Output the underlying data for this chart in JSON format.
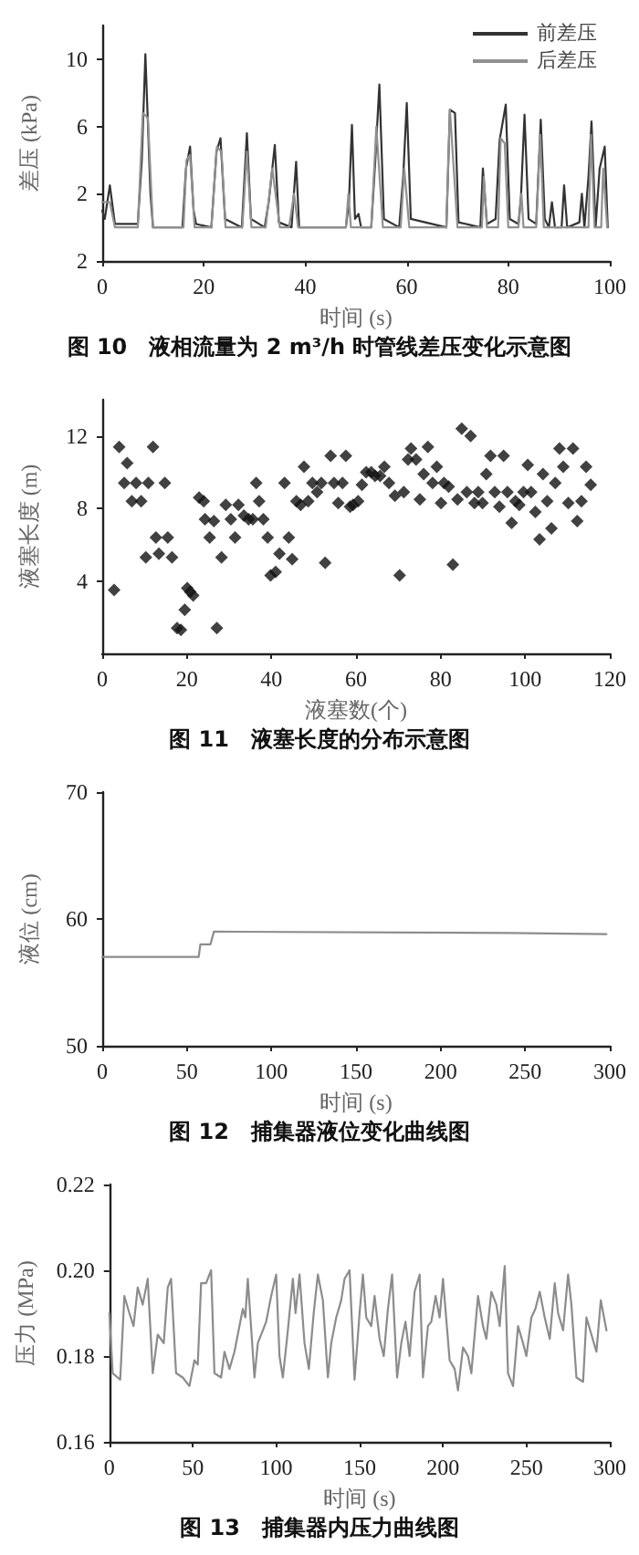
{
  "chart_data": [
    {
      "type": "line",
      "title": "图 10　液相流量为 2 m³/h 时管线差压变化示意图",
      "xlabel": "时间 (s)",
      "ylabel": "差压 (kPa)",
      "xlim": [
        0,
        100
      ],
      "xticks": [
        0,
        20,
        40,
        60,
        80,
        100
      ],
      "ylim": [
        -2,
        12
      ],
      "yticks": [
        {
          "value": -2,
          "label": "2"
        },
        2,
        6,
        10
      ],
      "grid": false,
      "legend": "top right",
      "marker": "none",
      "line_style": "solid",
      "series": [
        {
          "name": "前差压",
          "color": "#333333",
          "x": [
            0,
            0.5,
            1.5,
            2.5,
            7,
            7.8,
            8.5,
            9.5,
            10,
            15.8,
            16.5,
            17.3,
            18,
            18.5,
            21.5,
            22.5,
            23.3,
            24.2,
            27.5,
            28.5,
            29.3,
            32,
            32.8,
            34,
            34.8,
            37.3,
            38.2,
            38.8,
            48,
            48.6,
            49.2,
            49.8,
            50.5,
            51,
            53,
            53.8,
            54.6,
            55.5,
            58.5,
            59.3,
            60,
            60.8,
            67.8,
            68.5,
            69.5,
            70.2,
            74.5,
            75,
            75.8,
            77.5,
            78.3,
            79.5,
            80.3,
            82,
            82.5,
            83.2,
            84,
            85.5,
            86.4,
            87.2,
            88,
            88.6,
            89.2,
            90.5,
            91,
            91.6,
            94,
            94.5,
            95,
            95.8,
            96.4,
            97.2,
            98,
            99,
            99.6
          ],
          "values": [
            1,
            0.5,
            2.5,
            0.2,
            0.2,
            4,
            10.3,
            2,
            0,
            0,
            3.5,
            4.8,
            1,
            0.2,
            0,
            4.5,
            5.3,
            0.5,
            0,
            5.6,
            0.5,
            0,
            1.5,
            4.9,
            0.3,
            0,
            3.9,
            0,
            0,
            1.5,
            6.1,
            0.5,
            0.8,
            0,
            0,
            4,
            8.5,
            0.5,
            0,
            3,
            7.4,
            0.5,
            0,
            7,
            6.8,
            0.3,
            0,
            3.5,
            0.2,
            0.5,
            5.2,
            7.3,
            0.5,
            0.2,
            1.8,
            6.7,
            0.5,
            0.2,
            6.4,
            0.5,
            0,
            1.5,
            0,
            0,
            2.5,
            0,
            0.3,
            2,
            0,
            3,
            6.3,
            0,
            3.5,
            4.8,
            0
          ]
        },
        {
          "name": "后差压",
          "color": "#909090",
          "x": [
            0,
            1.5,
            2.5,
            7,
            8,
            9,
            10,
            16,
            16.6,
            17.3,
            18.2,
            21.5,
            22.6,
            23.5,
            24.3,
            27.6,
            28.5,
            29.4,
            32.2,
            33.5,
            35,
            36.8,
            37.8,
            38.6,
            48,
            48.5,
            49,
            53,
            54,
            55.3,
            58.8,
            59.5,
            60.5,
            67.8,
            68.5,
            70,
            74.8,
            75.2,
            75.8,
            78,
            78.5,
            79.3,
            80,
            82,
            82.6,
            83,
            85.5,
            86.3,
            87,
            95.8,
            96.3,
            97,
            98.3,
            98.7,
            99.5
          ],
          "values": [
            1.5,
            1.5,
            0,
            0,
            6.8,
            6.5,
            0,
            0,
            4,
            4.3,
            0,
            0,
            4.8,
            4.5,
            0,
            0,
            4.5,
            0,
            0,
            3.5,
            0,
            0,
            2,
            0,
            0,
            2,
            0,
            0,
            6,
            0,
            0,
            3.5,
            0,
            0,
            7,
            0,
            0,
            3,
            0,
            0,
            5.3,
            5,
            0,
            0,
            2,
            0,
            0,
            5.5,
            0,
            0,
            5.5,
            0,
            0,
            3.5,
            0
          ]
        }
      ]
    },
    {
      "type": "scatter",
      "title": "图 11　液塞长度的分布示意图",
      "xlabel": "液塞数(个)",
      "ylabel": "液塞长度 (m)",
      "xlim": [
        0,
        120
      ],
      "xticks": [
        0,
        20,
        40,
        60,
        80,
        100,
        120
      ],
      "ylim": [
        0,
        14
      ],
      "yticks": [
        4,
        8,
        12
      ],
      "grid": false,
      "marker": "diamond",
      "color": "#111111",
      "x": [
        2.8,
        4,
        5.2,
        5.9,
        7,
        8,
        9.2,
        10.3,
        10.9,
        12,
        12.7,
        13.4,
        14.8,
        15.5,
        16.5,
        17.7,
        18.6,
        19.5,
        20.1,
        20.8,
        21.5,
        22.9,
        24,
        24.3,
        25.4,
        26.4,
        27.1,
        28.2,
        29.2,
        30.4,
        31.4,
        32.2,
        33.5,
        34.6,
        35.6,
        36.4,
        37.1,
        38.1,
        39.1,
        39.8,
        41,
        41.9,
        43.1,
        44.1,
        44.9,
        45.9,
        46.9,
        47.7,
        48.7,
        49.7,
        50.8,
        51.8,
        52.7,
        54,
        54.8,
        55.8,
        56.8,
        57.6,
        58.6,
        59.3,
        60.5,
        61.4,
        62.4,
        63.6,
        64.5,
        65.7,
        66.7,
        67.8,
        69.2,
        70.3,
        71.3,
        72.3,
        73,
        74.2,
        75.1,
        76,
        77,
        78.1,
        79.1,
        80.1,
        80.8,
        81.9,
        82.9,
        84,
        85,
        86.2,
        87.1,
        88,
        88.9,
        89.9,
        90.8,
        91.8,
        92.8,
        93.9,
        94.9,
        95.8,
        96.8,
        97.7,
        98.6,
        99.6,
        100.6,
        101.4,
        102.4,
        103.4,
        104.2,
        105.2,
        106.2,
        107.1,
        108.1,
        109,
        110.2,
        111.3,
        112.3,
        113.3,
        114.4,
        115.5
      ],
      "values": [
        3.5,
        11.4,
        9.4,
        10.5,
        8.4,
        9.4,
        8.4,
        5.3,
        9.4,
        11.4,
        6.4,
        5.5,
        9.4,
        6.4,
        5.3,
        1.4,
        1.3,
        2.4,
        3.6,
        3.4,
        3.2,
        8.6,
        8.4,
        7.4,
        6.4,
        7.3,
        1.4,
        5.3,
        8.2,
        7.4,
        6.4,
        8.2,
        7.6,
        7.4,
        7.4,
        9.4,
        8.4,
        7.4,
        6.4,
        4.3,
        4.5,
        5.5,
        9.4,
        6.4,
        5.2,
        8.4,
        8.2,
        10.3,
        8.4,
        9.4,
        8.9,
        9.4,
        5,
        10.9,
        9.4,
        8.3,
        9.4,
        10.9,
        8.1,
        8.2,
        8.4,
        9.3,
        10,
        10,
        9.8,
        9.8,
        10.3,
        9.4,
        8.7,
        4.3,
        8.9,
        10.7,
        11.3,
        10.7,
        8.5,
        9.9,
        11.4,
        9.4,
        10.3,
        8.3,
        9.4,
        9.2,
        4.9,
        8.5,
        12.4,
        8.9,
        12,
        8.3,
        8.9,
        8.3,
        9.9,
        10.9,
        8.9,
        8.1,
        10.9,
        8.9,
        7.2,
        8.4,
        8.2,
        8.9,
        10.4,
        8.9,
        7.8,
        6.3,
        9.9,
        8.4,
        6.9,
        9.4,
        11.3,
        10.3,
        8.3,
        11.3,
        7.3,
        8.4,
        10.3,
        9.3
      ]
    },
    {
      "type": "line",
      "title": "图 12　捕集器液位变化曲线图",
      "xlabel": "时间 (s)",
      "ylabel": "液位 (cm)",
      "xlim": [
        0,
        300
      ],
      "xticks": [
        0,
        50,
        100,
        150,
        200,
        250,
        300
      ],
      "ylim": [
        50,
        70
      ],
      "yticks": [
        50,
        60,
        70
      ],
      "grid": false,
      "marker": "none",
      "line_style": "solid",
      "color": "#8c8c8c",
      "x": [
        0,
        57,
        58,
        64,
        66,
        240,
        298
      ],
      "values": [
        57,
        57,
        58,
        58,
        59,
        58.9,
        58.8
      ]
    },
    {
      "type": "line",
      "title": "图 13　捕集器内压力曲线图",
      "xlabel": "时间 (s)",
      "ylabel": "压力 (MPa)",
      "xlim": [
        0,
        300
      ],
      "xticks": [
        0,
        50,
        100,
        150,
        200,
        250,
        300
      ],
      "ylim": [
        0.16,
        0.22
      ],
      "yticks": [
        {
          "value": 0.16,
          "label": "0.16"
        },
        {
          "value": 0.18,
          "label": "0.18"
        },
        {
          "value": 0.2,
          "label": "0.20"
        },
        {
          "value": 0.22,
          "label": "0.22"
        }
      ],
      "grid": false,
      "marker": "none",
      "line_style": "solid",
      "color": "#8c8c8c",
      "x": [
        0,
        2,
        5,
        6.5,
        9,
        12,
        14.5,
        17,
        20,
        23,
        26,
        29,
        32.6,
        35,
        37,
        40,
        44,
        48,
        51,
        53,
        55,
        58,
        61,
        63,
        67,
        69,
        72,
        75,
        77,
        80,
        81.5,
        83,
        87,
        89,
        92,
        94,
        97,
        100,
        102,
        104,
        107,
        110,
        111.6,
        114,
        117,
        119.6,
        122.5,
        125,
        128,
        131,
        133,
        136,
        139,
        141,
        144,
        147,
        150,
        152,
        154,
        157,
        159,
        162,
        164.5,
        167,
        169.5,
        172.5,
        175,
        177.5,
        180,
        183,
        186,
        188,
        191,
        193,
        195.6,
        198,
        200,
        204,
        207,
        209,
        212,
        215,
        217,
        221,
        224,
        226,
        229,
        232,
        234,
        237,
        239,
        242,
        245,
        248,
        250,
        253,
        255.4,
        258,
        261,
        264,
        267,
        269,
        272,
        275,
        277,
        280,
        284,
        286,
        289,
        292,
        294.6,
        298
      ],
      "values": [
        0.19,
        0.176,
        0.175,
        0.1745,
        0.194,
        0.19,
        0.187,
        0.196,
        0.192,
        0.198,
        0.176,
        0.185,
        0.183,
        0.196,
        0.198,
        0.176,
        0.175,
        0.173,
        0.179,
        0.178,
        0.197,
        0.197,
        0.2,
        0.176,
        0.175,
        0.181,
        0.177,
        0.181,
        0.185,
        0.191,
        0.189,
        0.198,
        0.175,
        0.183,
        0.186,
        0.188,
        0.194,
        0.199,
        0.18,
        0.175,
        0.186,
        0.198,
        0.19,
        0.199,
        0.183,
        0.177,
        0.19,
        0.199,
        0.193,
        0.175,
        0.183,
        0.189,
        0.193,
        0.198,
        0.2,
        0.1745,
        0.19,
        0.199,
        0.189,
        0.187,
        0.194,
        0.184,
        0.18,
        0.191,
        0.199,
        0.175,
        0.183,
        0.188,
        0.18,
        0.195,
        0.199,
        0.175,
        0.187,
        0.188,
        0.194,
        0.189,
        0.198,
        0.179,
        0.177,
        0.172,
        0.182,
        0.18,
        0.176,
        0.194,
        0.187,
        0.184,
        0.195,
        0.192,
        0.187,
        0.201,
        0.176,
        0.173,
        0.187,
        0.183,
        0.18,
        0.189,
        0.191,
        0.195,
        0.189,
        0.184,
        0.197,
        0.19,
        0.186,
        0.199,
        0.192,
        0.175,
        0.174,
        0.189,
        0.185,
        0.181,
        0.193,
        0.186
      ]
    }
  ]
}
